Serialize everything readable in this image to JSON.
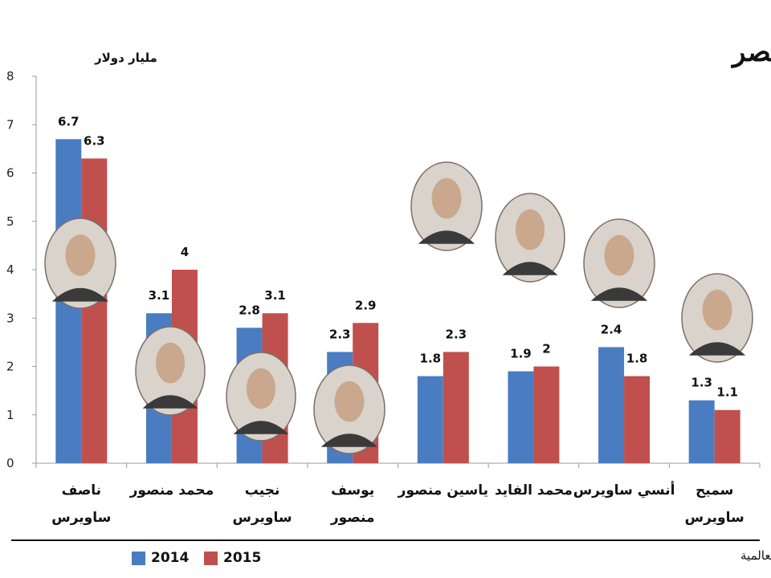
{
  "chart_data": {
    "type": "bar",
    "title": "ثروات أصحاب المليارات في مصر",
    "ylabel": "مليار دولار",
    "ylim": [
      0,
      8
    ],
    "yticks": [
      0,
      1,
      2,
      3,
      4,
      5,
      6,
      7,
      8
    ],
    "grid": false,
    "legend_position": "bottom-left",
    "categories": [
      [
        "ناصف",
        "ساويرس"
      ],
      [
        "محمد منصور"
      ],
      [
        "نجيب",
        "ساويرس"
      ],
      [
        "يوسف",
        "منصور"
      ],
      [
        "ياسين منصور"
      ],
      [
        "محمد الفايد"
      ],
      [
        "أنسي ساويرس"
      ],
      [
        "سميح",
        "ساويرس"
      ]
    ],
    "series": [
      {
        "name": "2014",
        "color": "#4a7cc2",
        "values": [
          6.7,
          3.1,
          2.8,
          2.3,
          1.8,
          1.9,
          2.4,
          1.3
        ]
      },
      {
        "name": "2015",
        "color": "#c0504d",
        "values": [
          6.3,
          4,
          3.1,
          2.9,
          2.3,
          2,
          1.8,
          1.1
        ]
      }
    ],
    "source": "المصدر: فوربس العالمية",
    "portraits": [
      "portrait-icon",
      "portrait-icon",
      "portrait-icon",
      "portrait-icon",
      "portrait-icon",
      "portrait-icon",
      "portrait-icon",
      "portrait-icon"
    ]
  }
}
